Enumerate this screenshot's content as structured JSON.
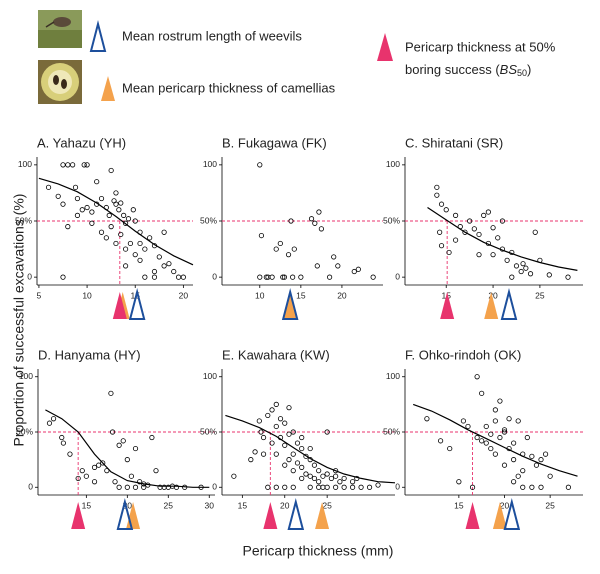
{
  "legend": {
    "rostrum": "Mean rostrum length of weevils",
    "pericarp": "Mean pericarp thickness of camellias",
    "bs50_line1": "Pericarp thickness at 50%",
    "bs50_prefix": "boring success (",
    "bs50_symbol": "BS",
    "bs50_sub": "50",
    "bs50_suffix": ")"
  },
  "axis_labels": {
    "y": "Proportion of successful excavations (%)",
    "x": "Pericarp thickness (mm)"
  },
  "colors": {
    "bs50": "#e8336d",
    "pericarp": "#f4a24c",
    "rostrum": "#1d4f9c",
    "points": "#000000",
    "curve": "#000000"
  },
  "chart_data": [
    {
      "type": "scatter",
      "title": "A. Yahazu (YH)",
      "xlim": [
        4.8,
        21
      ],
      "ylim": [
        -7,
        107
      ],
      "xticks": [
        5,
        10,
        15,
        20
      ],
      "yticks": [
        0,
        {
          "value": 50,
          "label": "50%"
        },
        100
      ],
      "success_level": 50,
      "bs50": 13.4,
      "mean_pericarp": 13.7,
      "mean_rostrum": 15.2,
      "points": {
        "x": [
          7.5,
          8,
          8.5,
          9.7,
          10,
          12.5,
          6,
          7,
          7.5,
          8.8,
          9,
          9.5,
          10,
          10.5,
          11,
          11.5,
          12,
          12.3,
          12.8,
          13,
          13.3,
          13.5,
          13.8,
          14,
          14.3,
          14.8,
          15,
          15.5,
          9,
          8,
          10.5,
          11.5,
          12,
          12.5,
          13,
          13.5,
          14,
          14.5,
          15,
          15.5,
          16,
          16.5,
          17,
          17.5,
          18,
          18.5,
          19,
          19.5,
          20,
          16,
          17,
          18,
          14,
          7.5,
          13,
          11,
          15.5,
          17
        ],
        "values": [
          100,
          100,
          100,
          100,
          100,
          95,
          80,
          72,
          65,
          80,
          70,
          60,
          62,
          58,
          65,
          70,
          62,
          55,
          68,
          65,
          60,
          66,
          55,
          48,
          52,
          60,
          50,
          40,
          55,
          45,
          48,
          40,
          35,
          45,
          30,
          38,
          25,
          30,
          20,
          30,
          25,
          35,
          28,
          18,
          10,
          12,
          5,
          0,
          0,
          0,
          0,
          40,
          10,
          0,
          75,
          85,
          15,
          5
        ]
      },
      "curve": {
        "x": [
          5,
          7,
          9,
          11,
          13,
          15,
          17,
          19,
          21
        ],
        "values": [
          88,
          83,
          76,
          66,
          54,
          41,
          29,
          19,
          11
        ]
      }
    },
    {
      "type": "scatter",
      "title": "B. Fukagawa (FK)",
      "xlim": [
        5.4,
        25
      ],
      "ylim": [
        -7,
        107
      ],
      "xticks": [
        10,
        15,
        20
      ],
      "yticks": [
        0,
        {
          "value": 50,
          "label": "50%"
        },
        100
      ],
      "success_level": 50,
      "mean_pericarp": 13.7,
      "mean_rostrum": 13.7,
      "points": {
        "x": [
          10,
          10.2,
          10.8,
          10,
          11,
          11.5,
          12,
          12.5,
          13.8,
          13.5,
          14.2,
          12.8,
          13,
          14,
          15,
          16.3,
          16.7,
          17.2,
          17.5,
          17,
          19,
          19.5,
          21.5,
          22,
          23.8,
          18.5
        ],
        "values": [
          100,
          37,
          0,
          0,
          0,
          0,
          25,
          30,
          50,
          20,
          25,
          0,
          0,
          0,
          0,
          52,
          48,
          58,
          43,
          10,
          18,
          10,
          5,
          7,
          0,
          0
        ]
      }
    },
    {
      "type": "scatter",
      "title": "C. Shiratani (SR)",
      "xlim": [
        10.6,
        29.6
      ],
      "ylim": [
        -7,
        107
      ],
      "xticks": [
        15,
        20,
        25
      ],
      "yticks": [
        0,
        {
          "value": 50,
          "label": "50%"
        },
        100
      ],
      "success_level": 50,
      "bs50": 15.1,
      "mean_pericarp": 19.8,
      "mean_rostrum": 21.7,
      "points": {
        "x": [
          14,
          14,
          14.5,
          15,
          14.3,
          14.5,
          15.3,
          16,
          16.5,
          17,
          17.5,
          18,
          18.5,
          19,
          19.5,
          20,
          20.5,
          19.5,
          18.5,
          21,
          21.5,
          22,
          22.5,
          23,
          23.2,
          23.5,
          22,
          24,
          24.5,
          25,
          26,
          28,
          21,
          20,
          16
        ],
        "values": [
          80,
          73,
          65,
          60,
          40,
          28,
          22,
          55,
          45,
          40,
          50,
          43,
          38,
          55,
          58,
          44,
          35,
          30,
          20,
          25,
          15,
          22,
          10,
          5,
          12,
          8,
          0,
          3,
          40,
          15,
          2,
          0,
          50,
          20,
          33
        ]
      },
      "curve": {
        "x": [
          13,
          15,
          17,
          19,
          21,
          23,
          25,
          27,
          29
        ],
        "values": [
          62,
          51,
          40,
          31,
          24,
          18,
          13,
          9,
          6
        ]
      }
    },
    {
      "type": "scatter",
      "title": "D. Hanyama (HY)",
      "xlim": [
        9.1,
        30.7
      ],
      "ylim": [
        -7,
        107
      ],
      "xticks": [
        15,
        20,
        25,
        30
      ],
      "yticks": [
        0,
        {
          "value": 50,
          "label": "50%"
        },
        100
      ],
      "success_level": 50,
      "bs50": 14.0,
      "mean_pericarp": 20.7,
      "mean_rostrum": 19.7,
      "points": {
        "x": [
          10.5,
          11,
          12,
          12.2,
          13,
          14.5,
          15,
          16,
          16.5,
          17,
          18,
          18.2,
          19,
          19.5,
          20,
          20.5,
          21,
          21.5,
          22,
          22.5,
          23,
          23.5,
          24,
          24.5,
          25,
          26,
          27,
          22,
          21,
          20,
          19,
          18.5,
          29,
          25.5,
          17.5,
          16,
          14
        ],
        "values": [
          58,
          62,
          45,
          40,
          30,
          15,
          10,
          5,
          20,
          22,
          85,
          50,
          38,
          42,
          25,
          10,
          35,
          5,
          3,
          2,
          45,
          15,
          0,
          0,
          0,
          0,
          0,
          0,
          0,
          0,
          0,
          5,
          0,
          1,
          15,
          18,
          8
        ]
      },
      "curve": {
        "x": [
          10,
          12,
          14,
          16,
          18,
          20,
          22,
          24,
          26,
          28,
          30
        ],
        "values": [
          70,
          62,
          50,
          30,
          14,
          6,
          3,
          1,
          1,
          0,
          0
        ]
      }
    },
    {
      "type": "scatter",
      "title": "E. Kawahara (KW)",
      "xlim": [
        12.6,
        33
      ],
      "ylim": [
        -7,
        107
      ],
      "xticks": [
        15,
        20,
        25
      ],
      "yticks": [
        0,
        {
          "value": 50,
          "label": "50%"
        },
        100
      ],
      "success_level": 50,
      "bs50": 18.3,
      "mean_pericarp": 24.4,
      "mean_rostrum": 21.3,
      "points": {
        "x": [
          14,
          16,
          16.5,
          17,
          17.2,
          17.5,
          18,
          18.5,
          18.5,
          19,
          19,
          19.5,
          19.5,
          20,
          20,
          20,
          20.5,
          20.5,
          21,
          21,
          21,
          21.5,
          21.5,
          22,
          22,
          22,
          22.5,
          22.5,
          23,
          23,
          23,
          23.5,
          23.5,
          24,
          24,
          24.5,
          24.5,
          25,
          25,
          25.5,
          26,
          26,
          26.5,
          27,
          27,
          28,
          28,
          29,
          30,
          31,
          18,
          19,
          20,
          21,
          25,
          24,
          20.5,
          19,
          22,
          17.5,
          26,
          28.5,
          23
        ],
        "values": [
          10,
          25,
          32,
          60,
          50,
          45,
          65,
          70,
          40,
          55,
          30,
          62,
          45,
          58,
          38,
          20,
          48,
          25,
          50,
          30,
          15,
          40,
          22,
          35,
          18,
          8,
          28,
          12,
          25,
          10,
          0,
          20,
          8,
          15,
          5,
          10,
          0,
          12,
          50,
          8,
          10,
          0,
          5,
          8,
          0,
          5,
          0,
          0,
          0,
          2,
          0,
          0,
          0,
          0,
          0,
          0,
          72,
          75,
          45,
          30,
          15,
          8,
          35
        ]
      },
      "curve": {
        "x": [
          13,
          15,
          17,
          19,
          21,
          23,
          25,
          27,
          29,
          31,
          33
        ],
        "values": [
          65,
          60,
          54,
          46,
          36,
          26,
          18,
          12,
          8,
          5,
          4
        ]
      }
    },
    {
      "type": "scatter",
      "title": "F. Ohko-rindoh (OK)",
      "xlim": [
        9.1,
        28.6
      ],
      "ylim": [
        -7,
        107
      ],
      "xticks": [
        15,
        20,
        25
      ],
      "yticks": [
        0,
        {
          "value": 50,
          "label": "50%"
        },
        100
      ],
      "success_level": 50,
      "bs50": 16.5,
      "mean_pericarp": 19.5,
      "mean_rostrum": 20.8,
      "points": {
        "x": [
          11.5,
          13,
          14,
          15,
          15.5,
          16,
          17,
          17.5,
          17.5,
          18,
          18,
          18.5,
          19,
          19,
          19.5,
          19.5,
          20,
          20,
          20,
          20.5,
          21,
          21,
          21.5,
          21.5,
          22,
          22,
          22.5,
          23,
          23,
          23.5,
          24,
          24.5,
          22,
          24,
          27,
          25,
          16.5,
          19,
          21,
          20.5,
          18.5,
          17
        ],
        "values": [
          62,
          42,
          35,
          5,
          60,
          55,
          100,
          42,
          85,
          40,
          55,
          35,
          70,
          30,
          45,
          78,
          52,
          20,
          50,
          35,
          25,
          40,
          10,
          60,
          30,
          15,
          45,
          28,
          0,
          20,
          25,
          30,
          0,
          0,
          0,
          10,
          0,
          60,
          5,
          62,
          48,
          45
        ]
      },
      "curve": {
        "x": [
          10,
          12,
          14,
          16,
          18,
          20,
          22,
          24,
          26,
          28
        ],
        "values": [
          75,
          69,
          61,
          52,
          44,
          36,
          28,
          21,
          15,
          10
        ]
      }
    }
  ]
}
